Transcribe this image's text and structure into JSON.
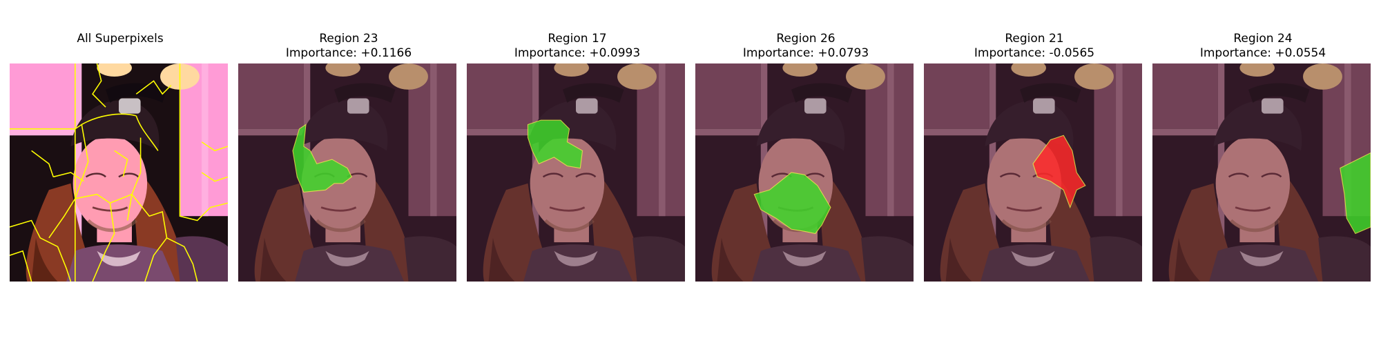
{
  "figure": {
    "panels": [
      {
        "title": "All Superpixels",
        "subtitle": "",
        "type": "all-superpixels"
      },
      {
        "title": "Region 23",
        "subtitle": "Importance: +0.1166",
        "type": "region",
        "importance": 0.1166,
        "color": "#3fd62a"
      },
      {
        "title": "Region 17",
        "subtitle": "Importance: +0.0993",
        "type": "region",
        "importance": 0.0993,
        "color": "#3fd62a"
      },
      {
        "title": "Region 26",
        "subtitle": "Importance: +0.0793",
        "type": "region",
        "importance": 0.0793,
        "color": "#3fd62a"
      },
      {
        "title": "Region 21",
        "subtitle": "Importance: -0.0565",
        "type": "region",
        "importance": -0.0565,
        "color": "#ff2a2a"
      },
      {
        "title": "Region 24",
        "subtitle": "Importance: +0.0554",
        "type": "region",
        "importance": 0.0554,
        "color": "#3fd62a"
      }
    ],
    "colors": {
      "boundary": "#ffff00",
      "positive": "#3fd62a",
      "negative": "#ff2a2a",
      "highlight_outline": "#e8e84a"
    }
  }
}
